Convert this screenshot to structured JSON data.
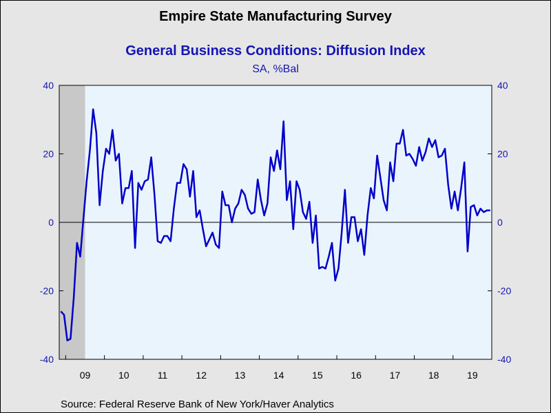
{
  "chart_data": {
    "type": "line",
    "title": "Empire State Manufacturing Survey",
    "subtitle": "General Business Conditions: Diffusion Index",
    "units": "SA, %Bal",
    "source": "Source:  Federal Reserve Bank of New York/Haver Analytics",
    "x_start": "2008-11",
    "x_end": "2019-12",
    "xtick_labels": [
      "09",
      "10",
      "11",
      "12",
      "13",
      "14",
      "15",
      "16",
      "17",
      "18",
      "19"
    ],
    "ylim": [
      -40,
      40
    ],
    "yticks": [
      -40,
      -20,
      0,
      20,
      40
    ],
    "recession_shading": {
      "start": "2008-11",
      "end": "2009-06",
      "color": "#c8c8c8"
    },
    "zero_line": true,
    "colors": {
      "line": "#0000c8",
      "background": "#eaf4fc",
      "frame": "#e6e6e6",
      "axis_text": "#1414b4"
    },
    "series": [
      {
        "values": [
          -26,
          -27,
          -34.5,
          -34,
          -22,
          -6,
          -10,
          1,
          12,
          21,
          33,
          26,
          5,
          15,
          21.5,
          20,
          27,
          18,
          20,
          5.5,
          10,
          10,
          15,
          -7.5,
          11.5,
          9.5,
          12,
          12.5,
          19,
          8,
          -5.5,
          -6,
          -4,
          -4,
          -5.5,
          4,
          11.5,
          11.5,
          17,
          15.5,
          7.5,
          15,
          1.5,
          3.5,
          -2,
          -7,
          -5,
          -3,
          -6.5,
          -7.5,
          9,
          5,
          5,
          0,
          4,
          5.5,
          9.5,
          8,
          4,
          2.5,
          3,
          12.5,
          6.5,
          2,
          5.5,
          19,
          15,
          21,
          15.5,
          29.5,
          6.5,
          12,
          -2,
          12,
          9.5,
          3,
          1,
          6,
          -6,
          2,
          -13.5,
          -13,
          -13.5,
          -10,
          -6,
          -17,
          -13.5,
          -3,
          9.5,
          -6,
          1.5,
          1.5,
          -5.5,
          -2,
          -9.5,
          2,
          10,
          7,
          19.5,
          13,
          6.5,
          3.5,
          17.5,
          12,
          23,
          23,
          27,
          19.5,
          20,
          18.5,
          16.5,
          22,
          18,
          20.5,
          24.5,
          22,
          24,
          19,
          19.5,
          21.5,
          11,
          4,
          9,
          3.5,
          10,
          17.5,
          -8.5,
          4.5,
          5,
          2,
          4,
          3,
          3.5,
          3.5
        ]
      }
    ]
  }
}
